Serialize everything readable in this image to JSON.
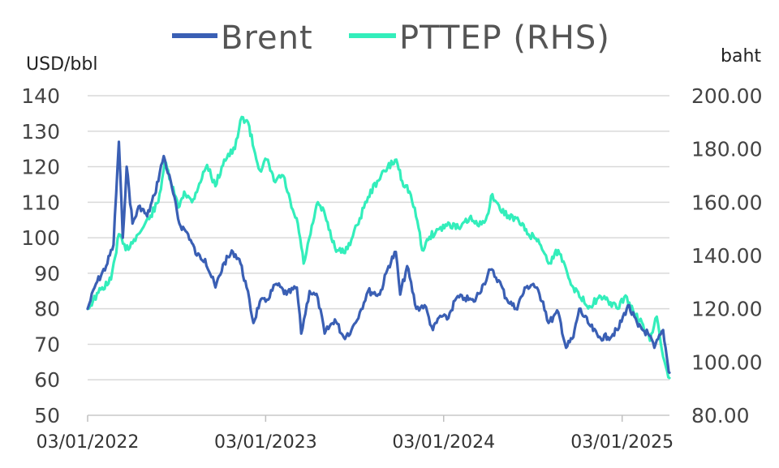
{
  "chart_data": {
    "type": "line",
    "title": "",
    "left_axis": {
      "unit_label": "USD/bbl",
      "ylim": [
        50,
        140
      ],
      "ticks": [
        50,
        60,
        70,
        80,
        90,
        100,
        110,
        120,
        130,
        140
      ],
      "tick_labels": [
        "50",
        "60",
        "70",
        "80",
        "90",
        "100",
        "110",
        "120",
        "130",
        "140"
      ]
    },
    "right_axis": {
      "unit_label": "baht",
      "ylim": [
        80,
        200
      ],
      "ticks": [
        80,
        100,
        120,
        140,
        160,
        180,
        200
      ],
      "tick_labels": [
        "80.00",
        "100.00",
        "120.00",
        "140.00",
        "160.00",
        "180.00",
        "200.00"
      ]
    },
    "x_axis": {
      "range": [
        "2022-01-03",
        "2025-04-10"
      ],
      "tick_dates": [
        "2022-01-03",
        "2023-01-03",
        "2024-01-03",
        "2025-01-03"
      ],
      "tick_labels": [
        "03/01/2022",
        "03/01/2023",
        "03/01/2024",
        "03/01/2025"
      ]
    },
    "grid": "horizontal",
    "legend_position": "top-center",
    "series": [
      {
        "name": "Brent",
        "axis": "left",
        "color": "#3a5fb4",
        "points": [
          [
            "2022-01-03",
            80
          ],
          [
            "2022-01-20",
            87
          ],
          [
            "2022-02-10",
            92
          ],
          [
            "2022-02-25",
            98
          ],
          [
            "2022-03-08",
            127
          ],
          [
            "2022-03-16",
            100
          ],
          [
            "2022-03-24",
            120
          ],
          [
            "2022-04-05",
            104
          ],
          [
            "2022-04-20",
            109
          ],
          [
            "2022-05-05",
            106
          ],
          [
            "2022-05-20",
            112
          ],
          [
            "2022-06-08",
            123
          ],
          [
            "2022-06-25",
            114
          ],
          [
            "2022-07-10",
            104
          ],
          [
            "2022-07-28",
            101
          ],
          [
            "2022-08-15",
            95
          ],
          [
            "2022-09-01",
            94
          ],
          [
            "2022-09-22",
            86
          ],
          [
            "2022-10-10",
            93
          ],
          [
            "2022-10-28",
            96
          ],
          [
            "2022-11-10",
            94
          ],
          [
            "2022-11-25",
            86
          ],
          [
            "2022-12-09",
            76
          ],
          [
            "2022-12-22",
            82
          ],
          [
            "2023-01-03",
            82
          ],
          [
            "2023-01-25",
            87
          ],
          [
            "2023-02-15",
            84
          ],
          [
            "2023-03-08",
            86
          ],
          [
            "2023-03-17",
            73
          ],
          [
            "2023-04-03",
            85
          ],
          [
            "2023-04-20",
            83
          ],
          [
            "2023-05-04",
            73
          ],
          [
            "2023-05-25",
            77
          ],
          [
            "2023-06-12",
            72
          ],
          [
            "2023-06-28",
            74
          ],
          [
            "2023-07-15",
            79
          ],
          [
            "2023-08-01",
            85
          ],
          [
            "2023-08-25",
            84
          ],
          [
            "2023-09-12",
            92
          ],
          [
            "2023-09-27",
            96
          ],
          [
            "2023-10-06",
            84
          ],
          [
            "2023-10-20",
            92
          ],
          [
            "2023-11-08",
            80
          ],
          [
            "2023-11-25",
            81
          ],
          [
            "2023-12-12",
            74
          ],
          [
            "2023-12-27",
            78
          ],
          [
            "2024-01-10",
            77
          ],
          [
            "2024-01-29",
            83
          ],
          [
            "2024-02-15",
            83
          ],
          [
            "2024-03-05",
            82
          ],
          [
            "2024-03-25",
            87
          ],
          [
            "2024-04-08",
            91
          ],
          [
            "2024-04-25",
            88
          ],
          [
            "2024-05-10",
            83
          ],
          [
            "2024-05-30",
            80
          ],
          [
            "2024-06-20",
            86
          ],
          [
            "2024-07-05",
            87
          ],
          [
            "2024-07-25",
            82
          ],
          [
            "2024-08-05",
            76
          ],
          [
            "2024-08-25",
            79
          ],
          [
            "2024-09-10",
            69
          ],
          [
            "2024-09-25",
            72
          ],
          [
            "2024-10-07",
            80
          ],
          [
            "2024-10-25",
            76
          ],
          [
            "2024-11-15",
            72
          ],
          [
            "2024-12-05",
            72
          ],
          [
            "2024-12-25",
            74
          ],
          [
            "2025-01-15",
            81
          ],
          [
            "2025-02-05",
            75
          ],
          [
            "2025-02-25",
            73
          ],
          [
            "2025-03-10",
            69
          ],
          [
            "2025-03-28",
            74
          ],
          [
            "2025-04-07",
            64
          ],
          [
            "2025-04-10",
            62
          ]
        ]
      },
      {
        "name": "PTTEP (RHS)",
        "axis": "right",
        "color": "#33eebb",
        "points": [
          [
            "2022-01-03",
            120
          ],
          [
            "2022-01-25",
            126
          ],
          [
            "2022-02-20",
            131
          ],
          [
            "2022-03-08",
            148
          ],
          [
            "2022-03-22",
            142
          ],
          [
            "2022-04-08",
            146
          ],
          [
            "2022-04-25",
            150
          ],
          [
            "2022-05-12",
            155
          ],
          [
            "2022-05-28",
            160
          ],
          [
            "2022-06-10",
            175
          ],
          [
            "2022-06-22",
            168
          ],
          [
            "2022-07-08",
            158
          ],
          [
            "2022-07-20",
            164
          ],
          [
            "2022-08-05",
            160
          ],
          [
            "2022-08-20",
            167
          ],
          [
            "2022-09-05",
            174
          ],
          [
            "2022-09-22",
            166
          ],
          [
            "2022-10-10",
            176
          ],
          [
            "2022-11-01",
            180
          ],
          [
            "2022-11-15",
            192
          ],
          [
            "2022-11-28",
            190
          ],
          [
            "2022-12-10",
            180
          ],
          [
            "2022-12-22",
            172
          ],
          [
            "2023-01-05",
            176
          ],
          [
            "2023-01-20",
            168
          ],
          [
            "2023-02-08",
            170
          ],
          [
            "2023-02-25",
            158
          ],
          [
            "2023-03-10",
            152
          ],
          [
            "2023-03-22",
            137
          ],
          [
            "2023-04-05",
            148
          ],
          [
            "2023-04-20",
            160
          ],
          [
            "2023-05-05",
            155
          ],
          [
            "2023-05-25",
            143
          ],
          [
            "2023-06-12",
            141
          ],
          [
            "2023-06-28",
            146
          ],
          [
            "2023-07-15",
            154
          ],
          [
            "2023-08-01",
            162
          ],
          [
            "2023-08-20",
            168
          ],
          [
            "2023-09-10",
            173
          ],
          [
            "2023-09-28",
            176
          ],
          [
            "2023-10-10",
            168
          ],
          [
            "2023-10-25",
            164
          ],
          [
            "2023-11-10",
            153
          ],
          [
            "2023-11-20",
            142
          ],
          [
            "2023-12-05",
            147
          ],
          [
            "2023-12-25",
            150
          ],
          [
            "2024-01-15",
            152
          ],
          [
            "2024-02-05",
            150
          ],
          [
            "2024-02-25",
            154
          ],
          [
            "2024-03-15",
            151
          ],
          [
            "2024-04-01",
            155
          ],
          [
            "2024-04-12",
            163
          ],
          [
            "2024-04-28",
            157
          ],
          [
            "2024-05-15",
            155
          ],
          [
            "2024-06-05",
            153
          ],
          [
            "2024-06-25",
            148
          ],
          [
            "2024-07-15",
            146
          ],
          [
            "2024-08-05",
            137
          ],
          [
            "2024-08-25",
            142
          ],
          [
            "2024-09-10",
            135
          ],
          [
            "2024-09-25",
            128
          ],
          [
            "2024-10-10",
            124
          ],
          [
            "2024-10-28",
            121
          ],
          [
            "2024-11-15",
            124
          ],
          [
            "2024-12-05",
            123
          ],
          [
            "2024-12-25",
            120
          ],
          [
            "2025-01-10",
            125
          ],
          [
            "2025-01-28",
            118
          ],
          [
            "2025-02-15",
            114
          ],
          [
            "2025-03-01",
            108
          ],
          [
            "2025-03-15",
            117
          ],
          [
            "2025-03-28",
            102
          ],
          [
            "2025-04-03",
            98
          ],
          [
            "2025-04-10",
            94
          ]
        ]
      }
    ]
  }
}
